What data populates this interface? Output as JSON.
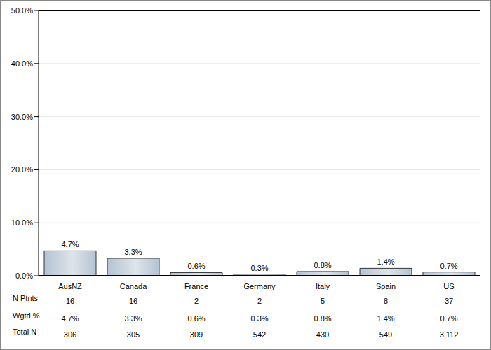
{
  "chart_data": {
    "type": "bar",
    "categories": [
      "AusNZ",
      "Canada",
      "France",
      "Germany",
      "Italy",
      "Spain",
      "US"
    ],
    "values": [
      4.7,
      3.3,
      0.6,
      0.3,
      0.8,
      1.4,
      0.7
    ],
    "value_labels": [
      "4.7%",
      "3.3%",
      "0.6%",
      "0.3%",
      "0.8%",
      "1.4%",
      "0.7%"
    ],
    "data_labels": true,
    "color": "#b4c3d2",
    "ylim": [
      0,
      50
    ],
    "yticks": [
      {
        "value": 0,
        "label": "0.0%"
      },
      {
        "value": 10,
        "label": "10.0%"
      },
      {
        "value": 20,
        "label": "20.0%"
      },
      {
        "value": 30,
        "label": "30.0%"
      },
      {
        "value": 40,
        "label": "40.0%"
      },
      {
        "value": 50,
        "label": "50.0%"
      }
    ],
    "grid": true,
    "table": [
      {
        "label": "N Ptnts",
        "values": [
          16,
          16,
          2,
          2,
          5,
          8,
          37
        ]
      },
      {
        "label": "Wgtd %",
        "values": [
          "4.7%",
          "3.3%",
          "0.6%",
          "0.3%",
          "0.8%",
          "1.4%",
          "0.7%"
        ]
      },
      {
        "label": "Total N",
        "values": [
          "306",
          "305",
          "309",
          "542",
          "430",
          "549",
          "3,112"
        ]
      }
    ]
  }
}
